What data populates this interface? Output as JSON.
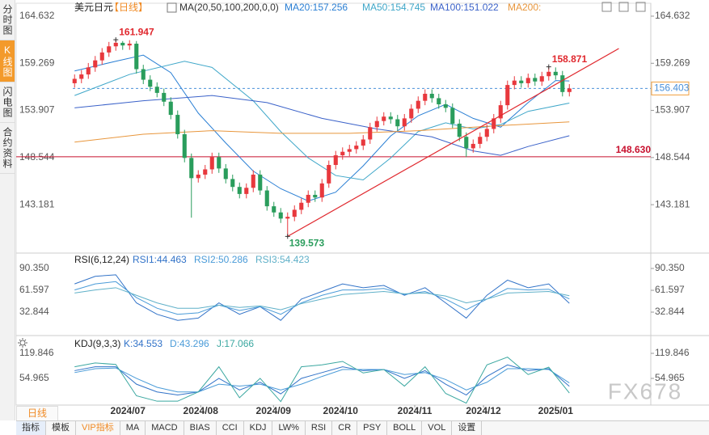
{
  "sidebar_tabs": [
    "分时图",
    "K线图",
    "闪电图",
    "合约资料"
  ],
  "period_label": "日线",
  "toolbar": [
    "指标",
    "模板",
    "VIP指标",
    "MA",
    "MACD",
    "BIAS",
    "CCI",
    "KDJ",
    "LW%",
    "RSI",
    "CR",
    "PSY",
    "BOLL",
    "VOL",
    "设置"
  ],
  "watermark": "FX678",
  "chart_data": [
    {
      "type": "candlestick",
      "title": "美元日元",
      "period": "【日线】",
      "indicator": "MA(20,50,100,200,0,0)",
      "up_color": "#e8383d",
      "down_color": "#2a9d5c",
      "xlim": [
        -8.5,
        83.85
      ],
      "ylim": [
        137.95,
        165.55
      ],
      "yticks": [
        164.632,
        159.269,
        153.907,
        148.544,
        143.181
      ],
      "x": [
        0,
        1,
        2,
        3,
        4,
        5,
        6,
        7,
        8,
        9,
        10,
        11,
        12,
        13,
        14,
        15,
        16,
        17,
        18,
        19,
        20,
        21,
        22,
        23,
        24,
        25,
        26,
        27,
        28,
        29,
        30,
        31,
        32,
        33,
        34,
        35,
        36,
        37,
        38,
        39,
        40,
        41,
        42,
        43,
        44,
        45,
        46,
        47,
        48,
        49,
        50,
        51,
        52,
        53,
        54,
        55,
        56,
        57,
        58,
        59,
        60,
        61,
        62,
        63,
        64,
        65,
        66,
        67,
        68,
        69,
        70,
        71,
        72
      ],
      "open": [
        157.0,
        157.5,
        158.0,
        158.8,
        159.6,
        160.5,
        161.2,
        161.6,
        161.3,
        161.5,
        158.6,
        157.4,
        156.6,
        155.9,
        154.9,
        153.4,
        151.2,
        148.5,
        146.2,
        146.6,
        147.2,
        148.6,
        147.3,
        146.1,
        145.2,
        144.4,
        145.1,
        146.6,
        144.8,
        143.0,
        142.3,
        141.6,
        141.8,
        142.6,
        143.4,
        144.3,
        144.0,
        145.6,
        147.7,
        148.8,
        149.2,
        149.5,
        149.9,
        150.6,
        152.0,
        152.7,
        153.2,
        152.9,
        152.1,
        153.0,
        154.1,
        155.0,
        155.8,
        155.3,
        154.6,
        154.2,
        152.4,
        150.9,
        149.6,
        150.1,
        150.9,
        151.8,
        153.0,
        154.5,
        156.8,
        157.3,
        157.0,
        157.6,
        157.2,
        157.8,
        158.3,
        157.9,
        156.0
      ],
      "high": [
        158.0,
        158.5,
        159.3,
        160.1,
        161.0,
        161.7,
        161.947,
        161.8,
        161.9,
        161.8,
        159.1,
        157.9,
        157.1,
        156.4,
        155.4,
        153.9,
        151.7,
        149.0,
        147.1,
        147.7,
        149.1,
        149.1,
        147.8,
        146.6,
        145.7,
        145.6,
        147.1,
        147.1,
        145.3,
        143.5,
        142.8,
        142.3,
        143.1,
        143.9,
        144.8,
        144.8,
        146.1,
        148.2,
        149.3,
        149.7,
        150.0,
        150.4,
        151.1,
        152.5,
        153.2,
        153.7,
        153.7,
        153.4,
        153.5,
        154.6,
        155.5,
        156.3,
        156.3,
        155.8,
        155.1,
        154.7,
        152.9,
        151.4,
        150.6,
        151.4,
        152.3,
        153.5,
        155.0,
        157.3,
        157.8,
        157.8,
        158.1,
        158.1,
        158.3,
        158.871,
        158.8,
        158.4,
        156.9
      ],
      "low": [
        156.5,
        157.0,
        157.5,
        158.3,
        159.1,
        160.0,
        160.7,
        160.8,
        160.8,
        158.1,
        156.9,
        156.1,
        155.4,
        154.4,
        152.9,
        150.7,
        148.0,
        141.7,
        145.7,
        146.1,
        146.7,
        146.8,
        145.6,
        144.7,
        143.9,
        143.9,
        144.6,
        144.3,
        142.5,
        141.8,
        141.1,
        139.573,
        141.3,
        142.1,
        142.9,
        143.5,
        143.5,
        145.1,
        147.2,
        148.3,
        148.7,
        149.0,
        149.4,
        150.1,
        151.5,
        152.2,
        152.4,
        151.6,
        151.6,
        152.5,
        153.6,
        154.5,
        154.8,
        154.1,
        153.7,
        151.9,
        150.4,
        148.6,
        149.1,
        149.6,
        150.4,
        151.3,
        152.5,
        154.0,
        156.3,
        156.5,
        156.5,
        156.7,
        156.7,
        157.3,
        157.4,
        155.5,
        155.5
      ],
      "close": [
        157.5,
        158.0,
        158.8,
        159.6,
        160.5,
        161.2,
        161.6,
        161.3,
        161.5,
        158.6,
        157.4,
        156.6,
        155.9,
        154.9,
        153.4,
        151.2,
        148.5,
        146.2,
        146.6,
        147.2,
        148.6,
        147.3,
        146.1,
        145.2,
        144.4,
        145.1,
        146.6,
        144.8,
        143.0,
        142.3,
        141.6,
        141.8,
        142.6,
        143.4,
        144.3,
        144.0,
        145.6,
        147.7,
        148.8,
        149.2,
        149.5,
        149.9,
        150.6,
        152.0,
        152.7,
        153.2,
        152.9,
        152.1,
        153.0,
        154.1,
        155.0,
        155.8,
        155.3,
        154.6,
        154.2,
        152.4,
        150.9,
        149.6,
        150.1,
        150.9,
        151.8,
        153.0,
        154.5,
        156.8,
        157.3,
        157.0,
        157.6,
        157.2,
        157.8,
        158.3,
        157.9,
        156.0,
        156.4
      ],
      "ma_series": [
        {
          "name": "MA20:157.256",
          "color": "#2a7fd4",
          "x": [
            0,
            6,
            10,
            14,
            18,
            22,
            26,
            30,
            34,
            38,
            42,
            46,
            50,
            54,
            58,
            62,
            66,
            70,
            72
          ],
          "values": [
            158.4,
            159.5,
            160.2,
            158.2,
            153.6,
            150.2,
            147.0,
            145.0,
            143.6,
            144.6,
            147.6,
            151.0,
            153.3,
            154.6,
            153.0,
            152.0,
            154.8,
            157.3,
            157.256
          ]
        },
        {
          "name": "MA50:154.745",
          "color": "#3fa7c9",
          "x": [
            0,
            8,
            16,
            20,
            26,
            30,
            34,
            38,
            42,
            46,
            50,
            54,
            58,
            62,
            66,
            72
          ],
          "values": [
            155.6,
            158.0,
            159.5,
            158.8,
            155.0,
            151.5,
            148.5,
            146.5,
            146.0,
            148.5,
            151.5,
            152.5,
            151.8,
            152.3,
            153.8,
            154.745
          ]
        },
        {
          "name": "MA100:151.022",
          "color": "#3b62c9",
          "x": [
            0,
            10,
            20,
            28,
            36,
            44,
            52,
            58,
            62,
            66,
            72
          ],
          "values": [
            154.2,
            155.0,
            155.6,
            154.8,
            153.0,
            151.8,
            150.9,
            149.3,
            148.8,
            149.8,
            151.022
          ]
        },
        {
          "name": "MA200:",
          "color": "#e8963c",
          "x": [
            0,
            10,
            20,
            30,
            40,
            50,
            60,
            72
          ],
          "values": [
            150.3,
            151.2,
            151.6,
            151.3,
            151.3,
            151.6,
            152.1,
            152.6
          ]
        }
      ],
      "trendline": {
        "color": "#e0282e",
        "x": [
          31,
          79.2
        ],
        "y": [
          139.573,
          160.95
        ]
      },
      "hlines": [
        {
          "value": 148.63,
          "label": "148.630",
          "color": "#c8102e"
        }
      ],
      "last_price": {
        "value": 156.403,
        "label": "156.403",
        "color": "#4a90d9"
      },
      "annotations": [
        {
          "x": 6,
          "value": 161.947,
          "label": "161.947",
          "color": "#e0282e",
          "position": "above"
        },
        {
          "x": 69,
          "value": 158.871,
          "label": "158.871",
          "color": "#e0282e",
          "position": "above"
        },
        {
          "x": 31,
          "value": 139.573,
          "label": "139.573",
          "color": "#2a9d5c",
          "position": "below"
        }
      ]
    },
    {
      "type": "line",
      "title": "RSI(6,12,24)",
      "xlim": [
        -8.5,
        83.85
      ],
      "ylim": [
        5.2,
        107.4
      ],
      "yticks": [
        {
          "value": 90.35,
          "label": "90.350"
        },
        61.597,
        32.844
      ],
      "x": [
        0,
        3,
        6,
        9,
        12,
        15,
        18,
        21,
        24,
        27,
        30,
        33,
        36,
        39,
        42,
        45,
        48,
        51,
        54,
        57,
        60,
        63,
        66,
        69,
        72
      ],
      "series": [
        {
          "name": "RSI1:44.463",
          "color": "#3273c8",
          "values": [
            70,
            80,
            82,
            45,
            30,
            22,
            25,
            45,
            30,
            40,
            22,
            50,
            60,
            70,
            65,
            68,
            55,
            65,
            45,
            25,
            55,
            75,
            65,
            70,
            44.463
          ]
        },
        {
          "name": "RSI2:50.286",
          "color": "#4a9bd8",
          "values": [
            62,
            70,
            73,
            52,
            38,
            30,
            32,
            42,
            35,
            40,
            30,
            45,
            55,
            62,
            62,
            64,
            56,
            60,
            50,
            36,
            50,
            64,
            62,
            63,
            50.286
          ]
        },
        {
          "name": "RSI3:54.423",
          "color": "#5fb0c8",
          "values": [
            58,
            62,
            65,
            55,
            45,
            38,
            38,
            42,
            39,
            41,
            36,
            44,
            50,
            56,
            58,
            60,
            57,
            58,
            54,
            45,
            50,
            58,
            59,
            60,
            54.423
          ]
        }
      ]
    },
    {
      "type": "line",
      "title": "KDJ(9,3,3)",
      "xlim": [
        -8.5,
        83.85
      ],
      "ylim": [
        -12.0,
        159.6
      ],
      "yticks": [
        119.846,
        54.965
      ],
      "xticks": [
        {
          "value": 7.76,
          "label": "2024/07"
        },
        {
          "value": 18.35,
          "label": "2024/08"
        },
        {
          "value": 28.94,
          "label": "2024/09"
        },
        {
          "value": 38.7,
          "label": "2024/10"
        },
        {
          "value": 49.5,
          "label": "2024/11"
        },
        {
          "value": 59.5,
          "label": "2024/12"
        },
        {
          "value": 70.0,
          "label": "2025/01"
        }
      ],
      "x": [
        0,
        3,
        6,
        9,
        12,
        15,
        18,
        21,
        24,
        27,
        30,
        33,
        36,
        39,
        42,
        45,
        48,
        51,
        54,
        57,
        60,
        63,
        66,
        69,
        72
      ],
      "series": [
        {
          "name": "K:34.553",
          "color": "#3273c8",
          "values": [
            75,
            85,
            85,
            40,
            20,
            12,
            20,
            55,
            25,
            45,
            15,
            55,
            70,
            85,
            75,
            78,
            55,
            75,
            40,
            12,
            60,
            90,
            75,
            80,
            34.553
          ]
        },
        {
          "name": "D:43.296",
          "color": "#4a9bd8",
          "values": [
            70,
            80,
            82,
            55,
            32,
            20,
            20,
            40,
            35,
            40,
            25,
            40,
            60,
            78,
            78,
            78,
            65,
            70,
            52,
            25,
            45,
            80,
            80,
            78,
            43.296
          ]
        },
        {
          "name": "J:17.066",
          "color": "#3aa7a0",
          "values": [
            85,
            95,
            91,
            10,
            -4,
            -4,
            20,
            85,
            5,
            55,
            -5,
            85,
            90,
            99,
            69,
            78,
            35,
            85,
            16,
            -9,
            90,
            110,
            65,
            84,
            17.066
          ]
        }
      ]
    }
  ]
}
